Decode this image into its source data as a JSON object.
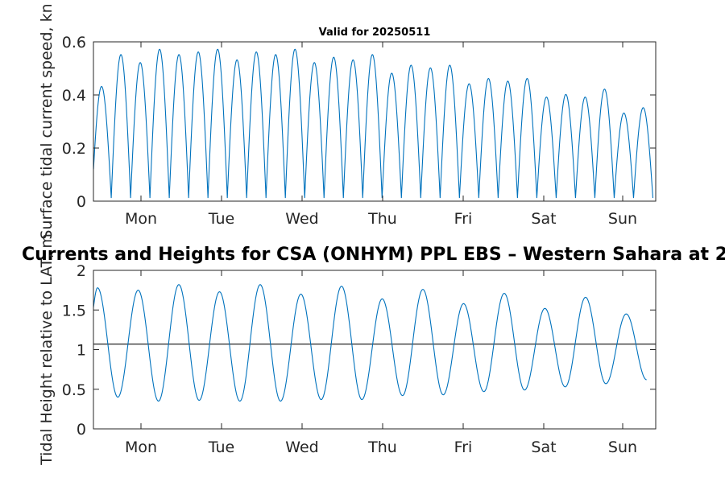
{
  "chart_data": [
    {
      "type": "line",
      "title": "Valid for 20250511",
      "ylabel": "Surface tidal current speed, kn",
      "xlabel": "",
      "ylim": [
        0,
        0.6
      ],
      "yticks": [
        "0",
        "0.2",
        "0.4",
        "0.6"
      ],
      "xticks": [
        "Mon",
        "Tue",
        "Wed",
        "Thu",
        "Fri",
        "Sat",
        "Sun"
      ],
      "grid": false,
      "series": [
        {
          "color": "#0072BD",
          "values": [
            0.42,
            0.54,
            0.51,
            0.56,
            0.54,
            0.55,
            0.56,
            0.52,
            0.55,
            0.54,
            0.56,
            0.51,
            0.53,
            0.52,
            0.54,
            0.47,
            0.5,
            0.49,
            0.5,
            0.43,
            0.45,
            0.44,
            0.45,
            0.38,
            0.39,
            0.38,
            0.41,
            0.32,
            0.34
          ]
        }
      ]
    },
    {
      "type": "line",
      "title": "Currents and Heights for CSA (ONHYM) PPL EBS  – Western Sahara at 2",
      "ylabel": "Tidal Height relative to LAT, m",
      "xlabel": "",
      "ylim": [
        0,
        2
      ],
      "yticks": [
        "0",
        "0.5",
        "1",
        "1.5",
        "2"
      ],
      "xticks": [
        "Mon",
        "Tue",
        "Wed",
        "Thu",
        "Fri",
        "Sat",
        "Sun"
      ],
      "grid": false,
      "reference_line": 1.07,
      "series": [
        {
          "color": "#0072BD",
          "high_waters": [
            1.78,
            1.75,
            1.82,
            1.73,
            1.82,
            1.7,
            1.8,
            1.64,
            1.76,
            1.58,
            1.71,
            1.52,
            1.66,
            1.45
          ],
          "low_waters": [
            0.4,
            0.35,
            0.36,
            0.35,
            0.35,
            0.37,
            0.37,
            0.42,
            0.43,
            0.47,
            0.49,
            0.53,
            0.57,
            0.62
          ]
        }
      ]
    }
  ]
}
